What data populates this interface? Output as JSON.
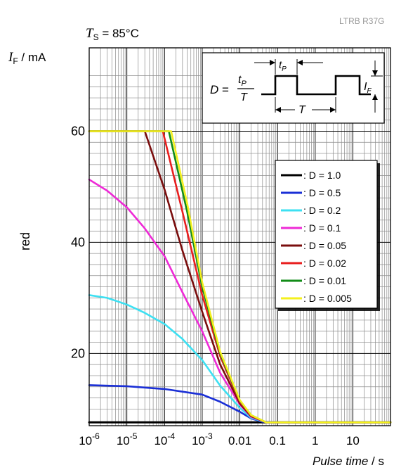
{
  "part_number": "LTRB R37G",
  "condition": "T_S = 85°C",
  "condition_parts": {
    "symbol": "T",
    "subscript": "S",
    "value": " = 85°C"
  },
  "chart_data": {
    "type": "line",
    "ylabel": {
      "symbol": "I",
      "subscript": "F",
      "unit": " / mA"
    },
    "ylabel_side": "red",
    "xlabel": {
      "quantity": "Pulse time",
      "unit": " / s"
    },
    "x_scale": "log",
    "xlim": [
      1e-06,
      100
    ],
    "ylim": [
      7,
      75
    ],
    "grid": true,
    "y_ticks": [
      {
        "value": 20,
        "label": "20"
      },
      {
        "value": 40,
        "label": "40"
      },
      {
        "value": 60,
        "label": "60"
      }
    ],
    "x_ticks": [
      {
        "value": 1e-06,
        "base": "10",
        "exp": "-6"
      },
      {
        "value": 1e-05,
        "base": "10",
        "exp": "-5"
      },
      {
        "value": 0.0001,
        "base": "10",
        "exp": "-4"
      },
      {
        "value": 0.001,
        "base": "10",
        "exp": "-3"
      },
      {
        "value": 0.01,
        "base": "0.01",
        "exp": ""
      },
      {
        "value": 0.1,
        "base": "0.1",
        "exp": ""
      },
      {
        "value": 1,
        "base": "1",
        "exp": ""
      },
      {
        "value": 10,
        "base": "10",
        "exp": ""
      }
    ],
    "legend_position": "right",
    "series": [
      {
        "name": ": D = 1.0",
        "color": "#000000",
        "points": [
          [
            1e-06,
            7.6
          ],
          [
            100,
            7.6
          ]
        ]
      },
      {
        "name": ": D = 0.5",
        "color": "#1a2fd6",
        "points": [
          [
            1e-06,
            14.3
          ],
          [
            1e-05,
            14.1
          ],
          [
            0.0001,
            13.6
          ],
          [
            0.001,
            12.6
          ],
          [
            0.003,
            11.3
          ],
          [
            0.01,
            9.5
          ],
          [
            0.02,
            8.3
          ],
          [
            0.04,
            7.7
          ],
          [
            0.1,
            7.6
          ],
          [
            100,
            7.6
          ]
        ]
      },
      {
        "name": ": D = 0.2",
        "color": "#3de0f2",
        "points": [
          [
            1e-06,
            30.5
          ],
          [
            3e-06,
            30
          ],
          [
            1e-05,
            28.8
          ],
          [
            3e-05,
            27.3
          ],
          [
            0.0001,
            25.3
          ],
          [
            0.0003,
            22.6
          ],
          [
            0.001,
            18.8
          ],
          [
            0.003,
            14.2
          ],
          [
            0.01,
            10.2
          ],
          [
            0.02,
            8.4
          ],
          [
            0.05,
            7.6
          ],
          [
            100,
            7.6
          ]
        ]
      },
      {
        "name": ": D = 0.1",
        "color": "#ee2ad6",
        "points": [
          [
            1e-06,
            51.3
          ],
          [
            3e-06,
            49.3
          ],
          [
            1e-05,
            46.3
          ],
          [
            3e-05,
            42.5
          ],
          [
            0.0001,
            37.5
          ],
          [
            0.0003,
            31
          ],
          [
            0.001,
            24
          ],
          [
            0.003,
            16.5
          ],
          [
            0.01,
            10.8
          ],
          [
            0.02,
            8.6
          ],
          [
            0.05,
            7.6
          ],
          [
            100,
            7.6
          ]
        ]
      },
      {
        "name": ": D = 0.05",
        "color": "#7a0d0d",
        "points": [
          [
            1e-06,
            60
          ],
          [
            3e-05,
            60
          ],
          [
            0.0001,
            49.5
          ],
          [
            0.0003,
            38.5
          ],
          [
            0.001,
            27.5
          ],
          [
            0.003,
            18
          ],
          [
            0.01,
            11
          ],
          [
            0.02,
            8.7
          ],
          [
            0.05,
            7.6
          ],
          [
            100,
            7.6
          ]
        ]
      },
      {
        "name": ": D = 0.02",
        "color": "#e81e1e",
        "points": [
          [
            1e-06,
            60
          ],
          [
            9e-05,
            60
          ],
          [
            0.0003,
            45.5
          ],
          [
            0.001,
            30.5
          ],
          [
            0.003,
            19.5
          ],
          [
            0.01,
            11.3
          ],
          [
            0.02,
            8.8
          ],
          [
            0.05,
            7.6
          ],
          [
            100,
            7.6
          ]
        ]
      },
      {
        "name": ": D = 0.01",
        "color": "#128c18",
        "points": [
          [
            1e-06,
            60
          ],
          [
            0.00013,
            60
          ],
          [
            0.0004,
            45.5
          ],
          [
            0.001,
            32
          ],
          [
            0.003,
            20
          ],
          [
            0.01,
            11.5
          ],
          [
            0.02,
            8.9
          ],
          [
            0.05,
            7.6
          ],
          [
            100,
            7.6
          ]
        ]
      },
      {
        "name": ": D = 0.005",
        "color": "#f4f01e",
        "points": [
          [
            1e-06,
            60
          ],
          [
            0.00015,
            60
          ],
          [
            0.0004,
            47
          ],
          [
            0.001,
            32.8
          ],
          [
            0.003,
            20.3
          ],
          [
            0.01,
            11.6
          ],
          [
            0.02,
            8.9
          ],
          [
            0.05,
            7.6
          ],
          [
            100,
            7.6
          ]
        ]
      }
    ],
    "inset": {
      "formula": {
        "lhs": "D",
        "eq": " = ",
        "num_base": "t",
        "num_sub": "P",
        "den": "T"
      },
      "labels": {
        "tp_base": "t",
        "tp_sub": "P",
        "period": "T",
        "if_base": "I",
        "if_sub": "F"
      }
    }
  }
}
